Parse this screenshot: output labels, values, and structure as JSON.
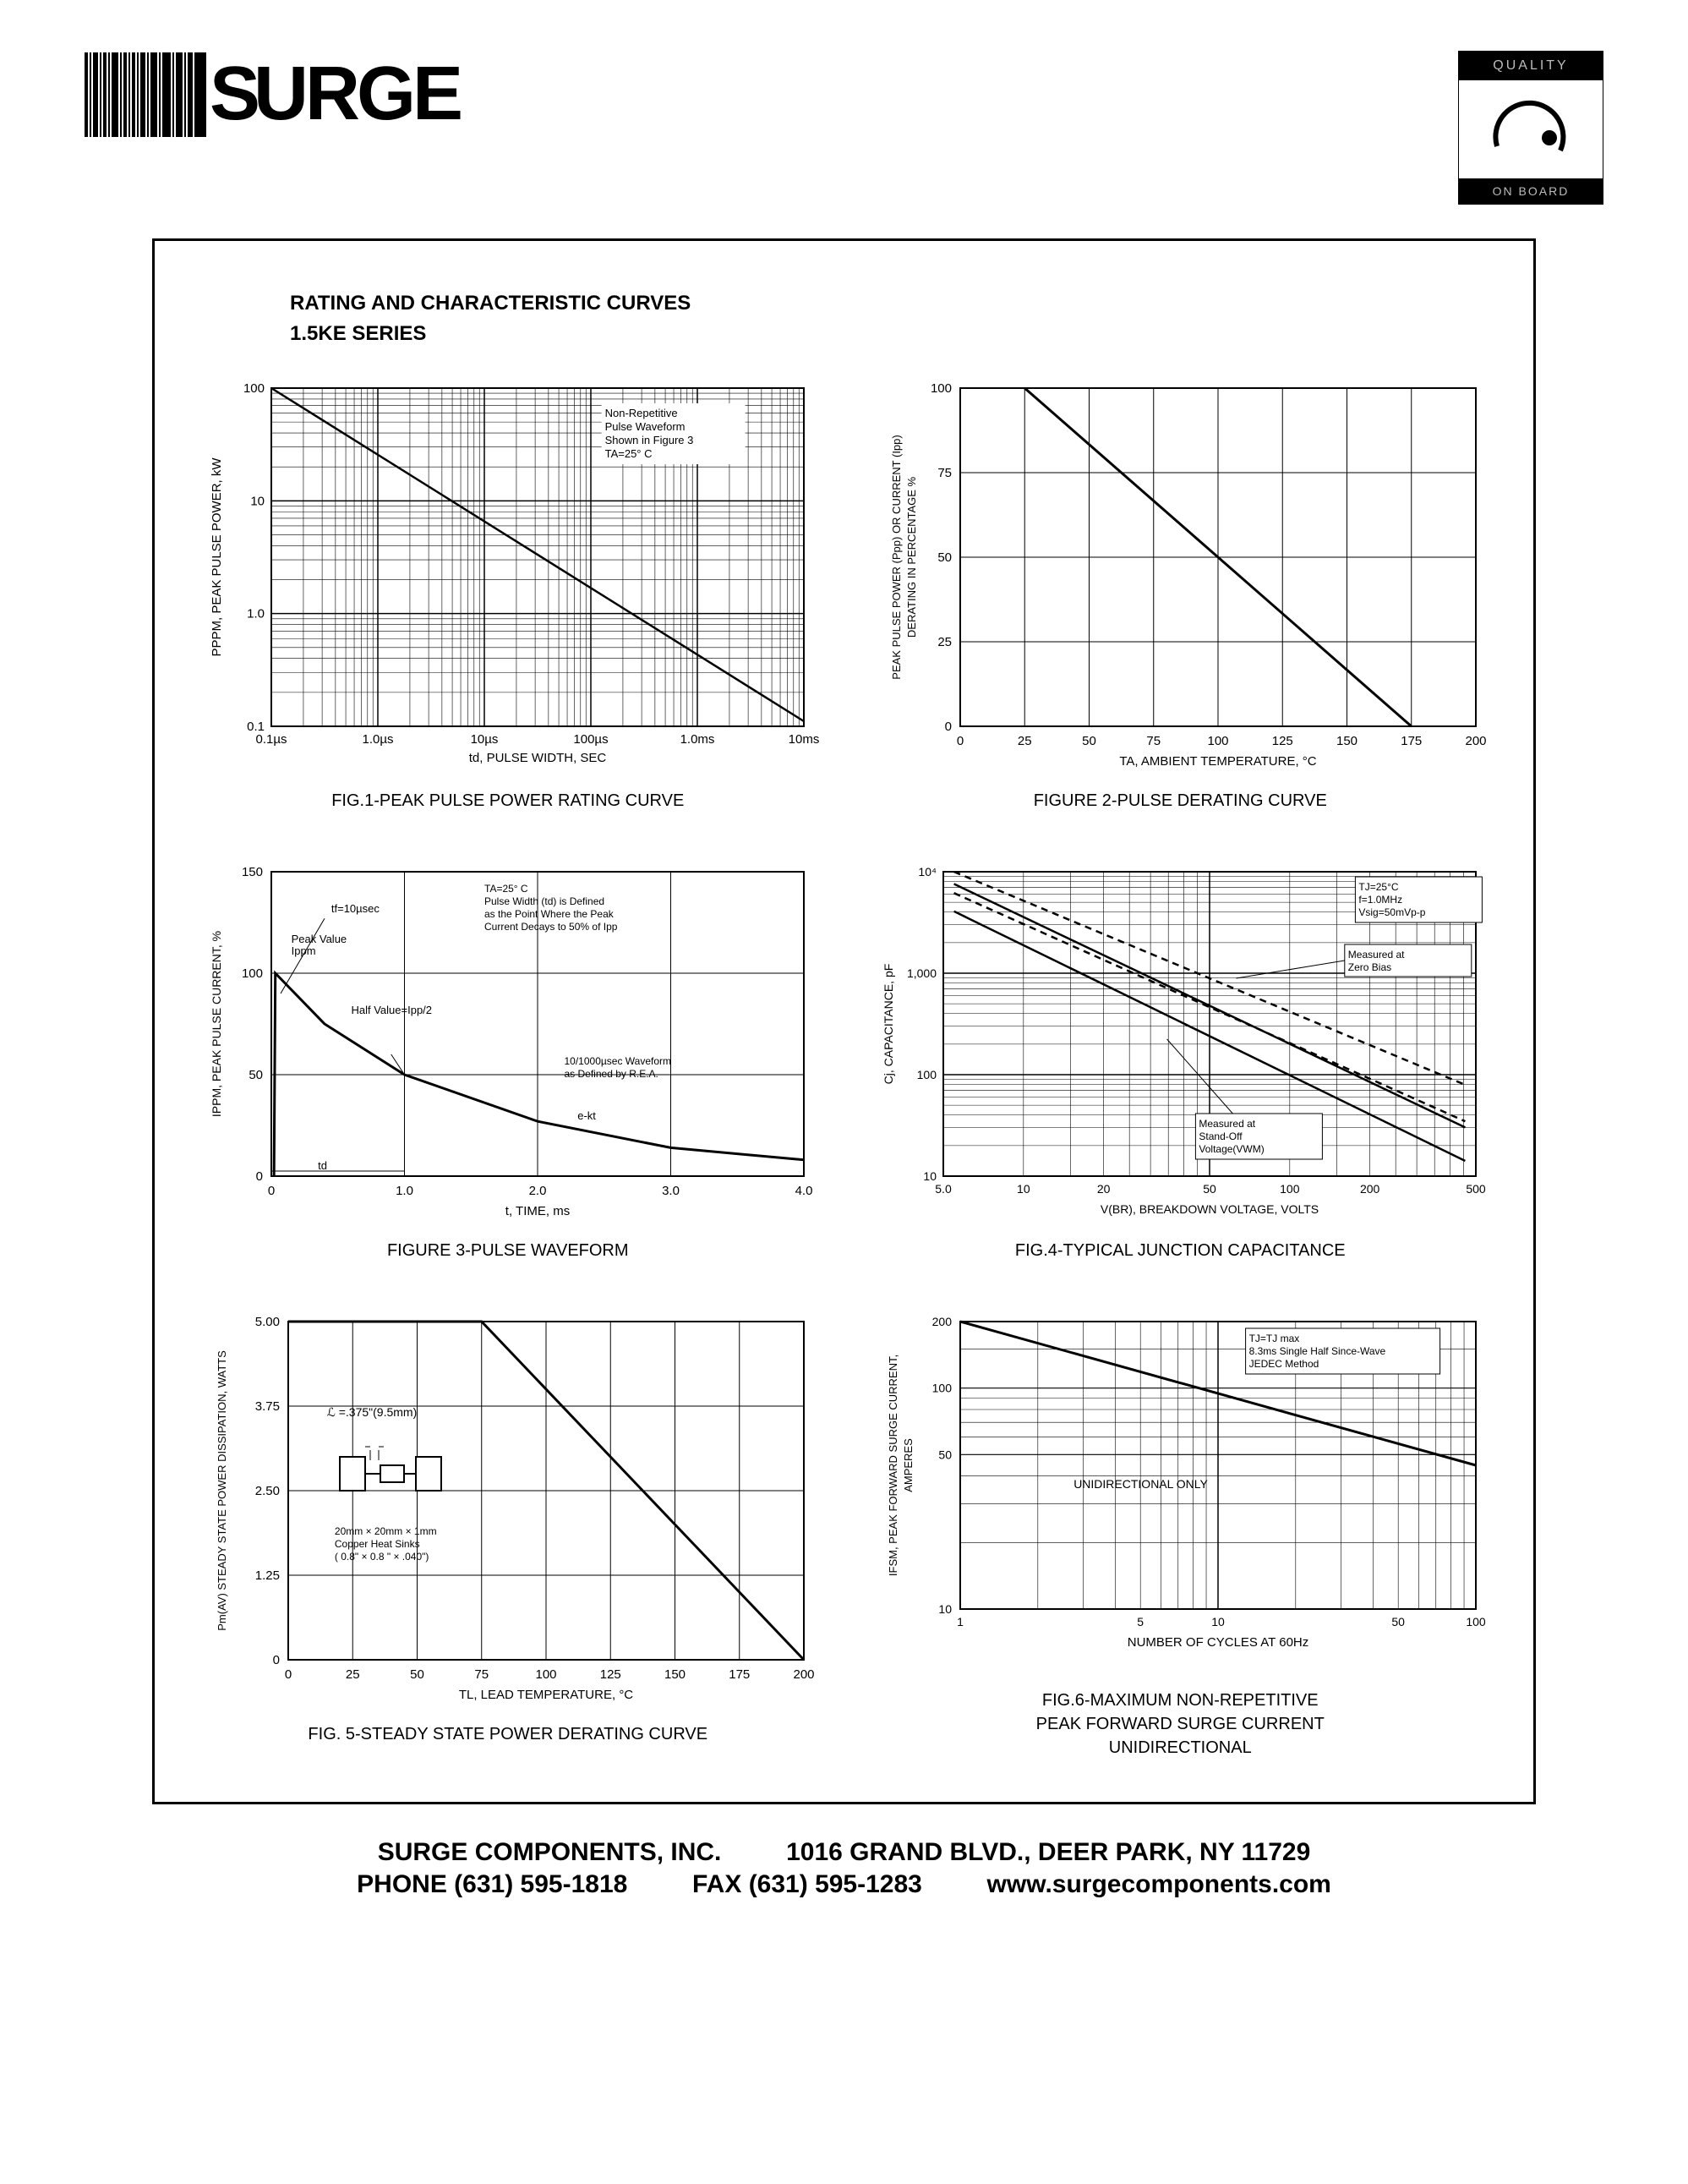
{
  "header": {
    "brand_word": "URGE",
    "badge_top": "QUALITY",
    "badge_bottom": "ON BOARD"
  },
  "titles": {
    "main": "RATING AND CHARACTERISTIC CURVES",
    "series": "1.5KE SERIES"
  },
  "fig1": {
    "type": "line-loglog",
    "x_label": "td, PULSE WIDTH, SEC",
    "y_label": "PPPM, PEAK PULSE POWER, kW",
    "x_ticks": [
      "0.1µs",
      "1.0µs",
      "10µs",
      "100µs",
      "1.0ms",
      "10ms"
    ],
    "y_ticks": [
      "0.1",
      "1.0",
      "10",
      "100"
    ],
    "note_lines": [
      "Non-Repetitive",
      "Pulse Waveform",
      "Shown in Figure 3",
      "TA=25° C"
    ],
    "caption": "FIG.1-PEAK PULSE POWER RATING CURVE",
    "line_points": [
      [
        0,
        0
      ],
      [
        1,
        0.985
      ]
    ],
    "grid_color": "#000000",
    "line_color": "#000000",
    "line_width": 2.5
  },
  "fig2": {
    "type": "line",
    "x_label": "TA, AMBIENT  TEMPERATURE, °C",
    "y_label": "PEAK PULSE POWER (Ppp) OR CURRENT (Ipp)\nDERATING IN PERCENTAGE %",
    "x_ticks": [
      "0",
      "25",
      "50",
      "75",
      "100",
      "125",
      "150",
      "175",
      "200"
    ],
    "y_ticks": [
      "0",
      "25",
      "50",
      "75",
      "100"
    ],
    "caption": "FIGURE 2-PULSE DERATING CURVE",
    "points": [
      [
        25,
        100
      ],
      [
        175,
        0
      ]
    ],
    "grid_color": "#000000",
    "line_color": "#000000",
    "line_width": 3
  },
  "fig3": {
    "type": "waveform",
    "x_label": "t, TIME, ms",
    "y_label": "IPPM, PEAK PULSE CURRENT, %",
    "x_ticks": [
      "0",
      "1.0",
      "2.0",
      "3.0",
      "4.0"
    ],
    "y_ticks": [
      "0",
      "50",
      "100",
      "150"
    ],
    "caption": "FIGURE 3-PULSE WAVEFORM",
    "labels": {
      "tf": "tf=10µsec",
      "peak": "Peak Value\nIppm",
      "half": "Half Value=Ipp/2",
      "td": "td",
      "ta_note": "TA=25° C\nPulse Width (td) is Defined\nas the Point Where the Peak\nCurrent Decays to 50% of Ipp",
      "rea": "10/1000µsec Waveform\nas Defined by R.E.A.",
      "ekt": "e-kt"
    },
    "curve": [
      [
        0.02,
        0
      ],
      [
        0.03,
        100
      ],
      [
        0.4,
        75
      ],
      [
        1.0,
        50
      ],
      [
        2.0,
        27
      ],
      [
        3.0,
        14
      ],
      [
        4.0,
        8
      ]
    ],
    "grid_color": "#000000",
    "line_color": "#000000",
    "line_width": 3
  },
  "fig4": {
    "type": "line-loglog",
    "x_label": "V(BR), BREAKDOWN VOLTAGE, VOLTS",
    "y_label": "Cj, CAPACITANCE, pF",
    "x_ticks": [
      "5.0",
      "10",
      "20",
      "50",
      "100",
      "200",
      "500"
    ],
    "y_ticks": [
      "10",
      "100",
      "1,000",
      "10⁴"
    ],
    "caption": "FIG.4-TYPICAL JUNCTION CAPACITANCE",
    "note_top": "TJ=25°C\nf=1.0MHz\nVsig=50mVp-p",
    "note_zero": "Measured at\nZero Bias",
    "note_standoff": "Measured at\nStand-Off\nVoltage(VWM)",
    "lines": {
      "solid1": [
        [
          0.02,
          0.96
        ],
        [
          0.98,
          0.16
        ]
      ],
      "solid2": [
        [
          0.02,
          0.87
        ],
        [
          0.98,
          0.05
        ]
      ],
      "dashed1": [
        [
          0.02,
          1.0
        ],
        [
          0.98,
          0.3
        ]
      ],
      "dashed2": [
        [
          0.02,
          0.93
        ],
        [
          0.98,
          0.18
        ]
      ]
    },
    "grid_color": "#000000",
    "line_color": "#000000",
    "line_width": 2.5
  },
  "fig5": {
    "type": "line",
    "x_label": "TL, LEAD TEMPERATURE, °C",
    "y_label": "Pm(AV) STEADY STATE POWER DISSIPATION, WATTS",
    "x_ticks": [
      "0",
      "25",
      "50",
      "75",
      "100",
      "125",
      "150",
      "175",
      "200"
    ],
    "y_ticks": [
      "0",
      "1.25",
      "2.50",
      "3.75",
      "5.00"
    ],
    "caption": "FIG. 5-STEADY STATE POWER DERATING CURVE",
    "j_note": "ℒ =.375\"(9.5mm)",
    "hs_note": "20mm × 20mm × 1mm\nCopper Heat Sinks\n( 0.8\" × 0.8 \" × .040\")",
    "points": [
      [
        0,
        5.0
      ],
      [
        75,
        5.0
      ],
      [
        200,
        0
      ]
    ],
    "grid_color": "#000000",
    "line_color": "#000000",
    "line_width": 3
  },
  "fig6": {
    "type": "line-loglog",
    "x_label": "NUMBER OF CYCLES AT 60Hz",
    "y_label": "IFSM, PEAK FORWARD SURGE CURRENT,\nAMPERES",
    "x_ticks": [
      "1",
      "5",
      "10",
      "50",
      "100"
    ],
    "y_ticks": [
      "10",
      "50",
      "100",
      "200"
    ],
    "caption": "FIG.6-MAXIMUM NON-REPETITIVE\nPEAK FORWARD SURGE CURRENT\nUNIDIRECTIONAL",
    "note_top": "TJ=TJ max\n8.3ms Single Half Since-Wave\nJEDEC Method",
    "note_uni": "UNIDIRECTIONAL ONLY",
    "points": [
      [
        0,
        1.0
      ],
      [
        1.0,
        0.5
      ]
    ],
    "grid_color": "#000000",
    "line_color": "#000000",
    "line_width": 3
  },
  "footer": {
    "company": "SURGE COMPONENTS, INC.",
    "address": "1016 GRAND BLVD., DEER PARK, NY 11729",
    "phone": "PHONE (631) 595-1818",
    "fax": "FAX  (631) 595-1283",
    "url": "www.surgecomponents.com"
  },
  "colors": {
    "black": "#000000",
    "white": "#ffffff"
  },
  "font_sizes": {
    "axis_label": 15,
    "tick": 14,
    "small_note": 12,
    "caption": 20
  }
}
